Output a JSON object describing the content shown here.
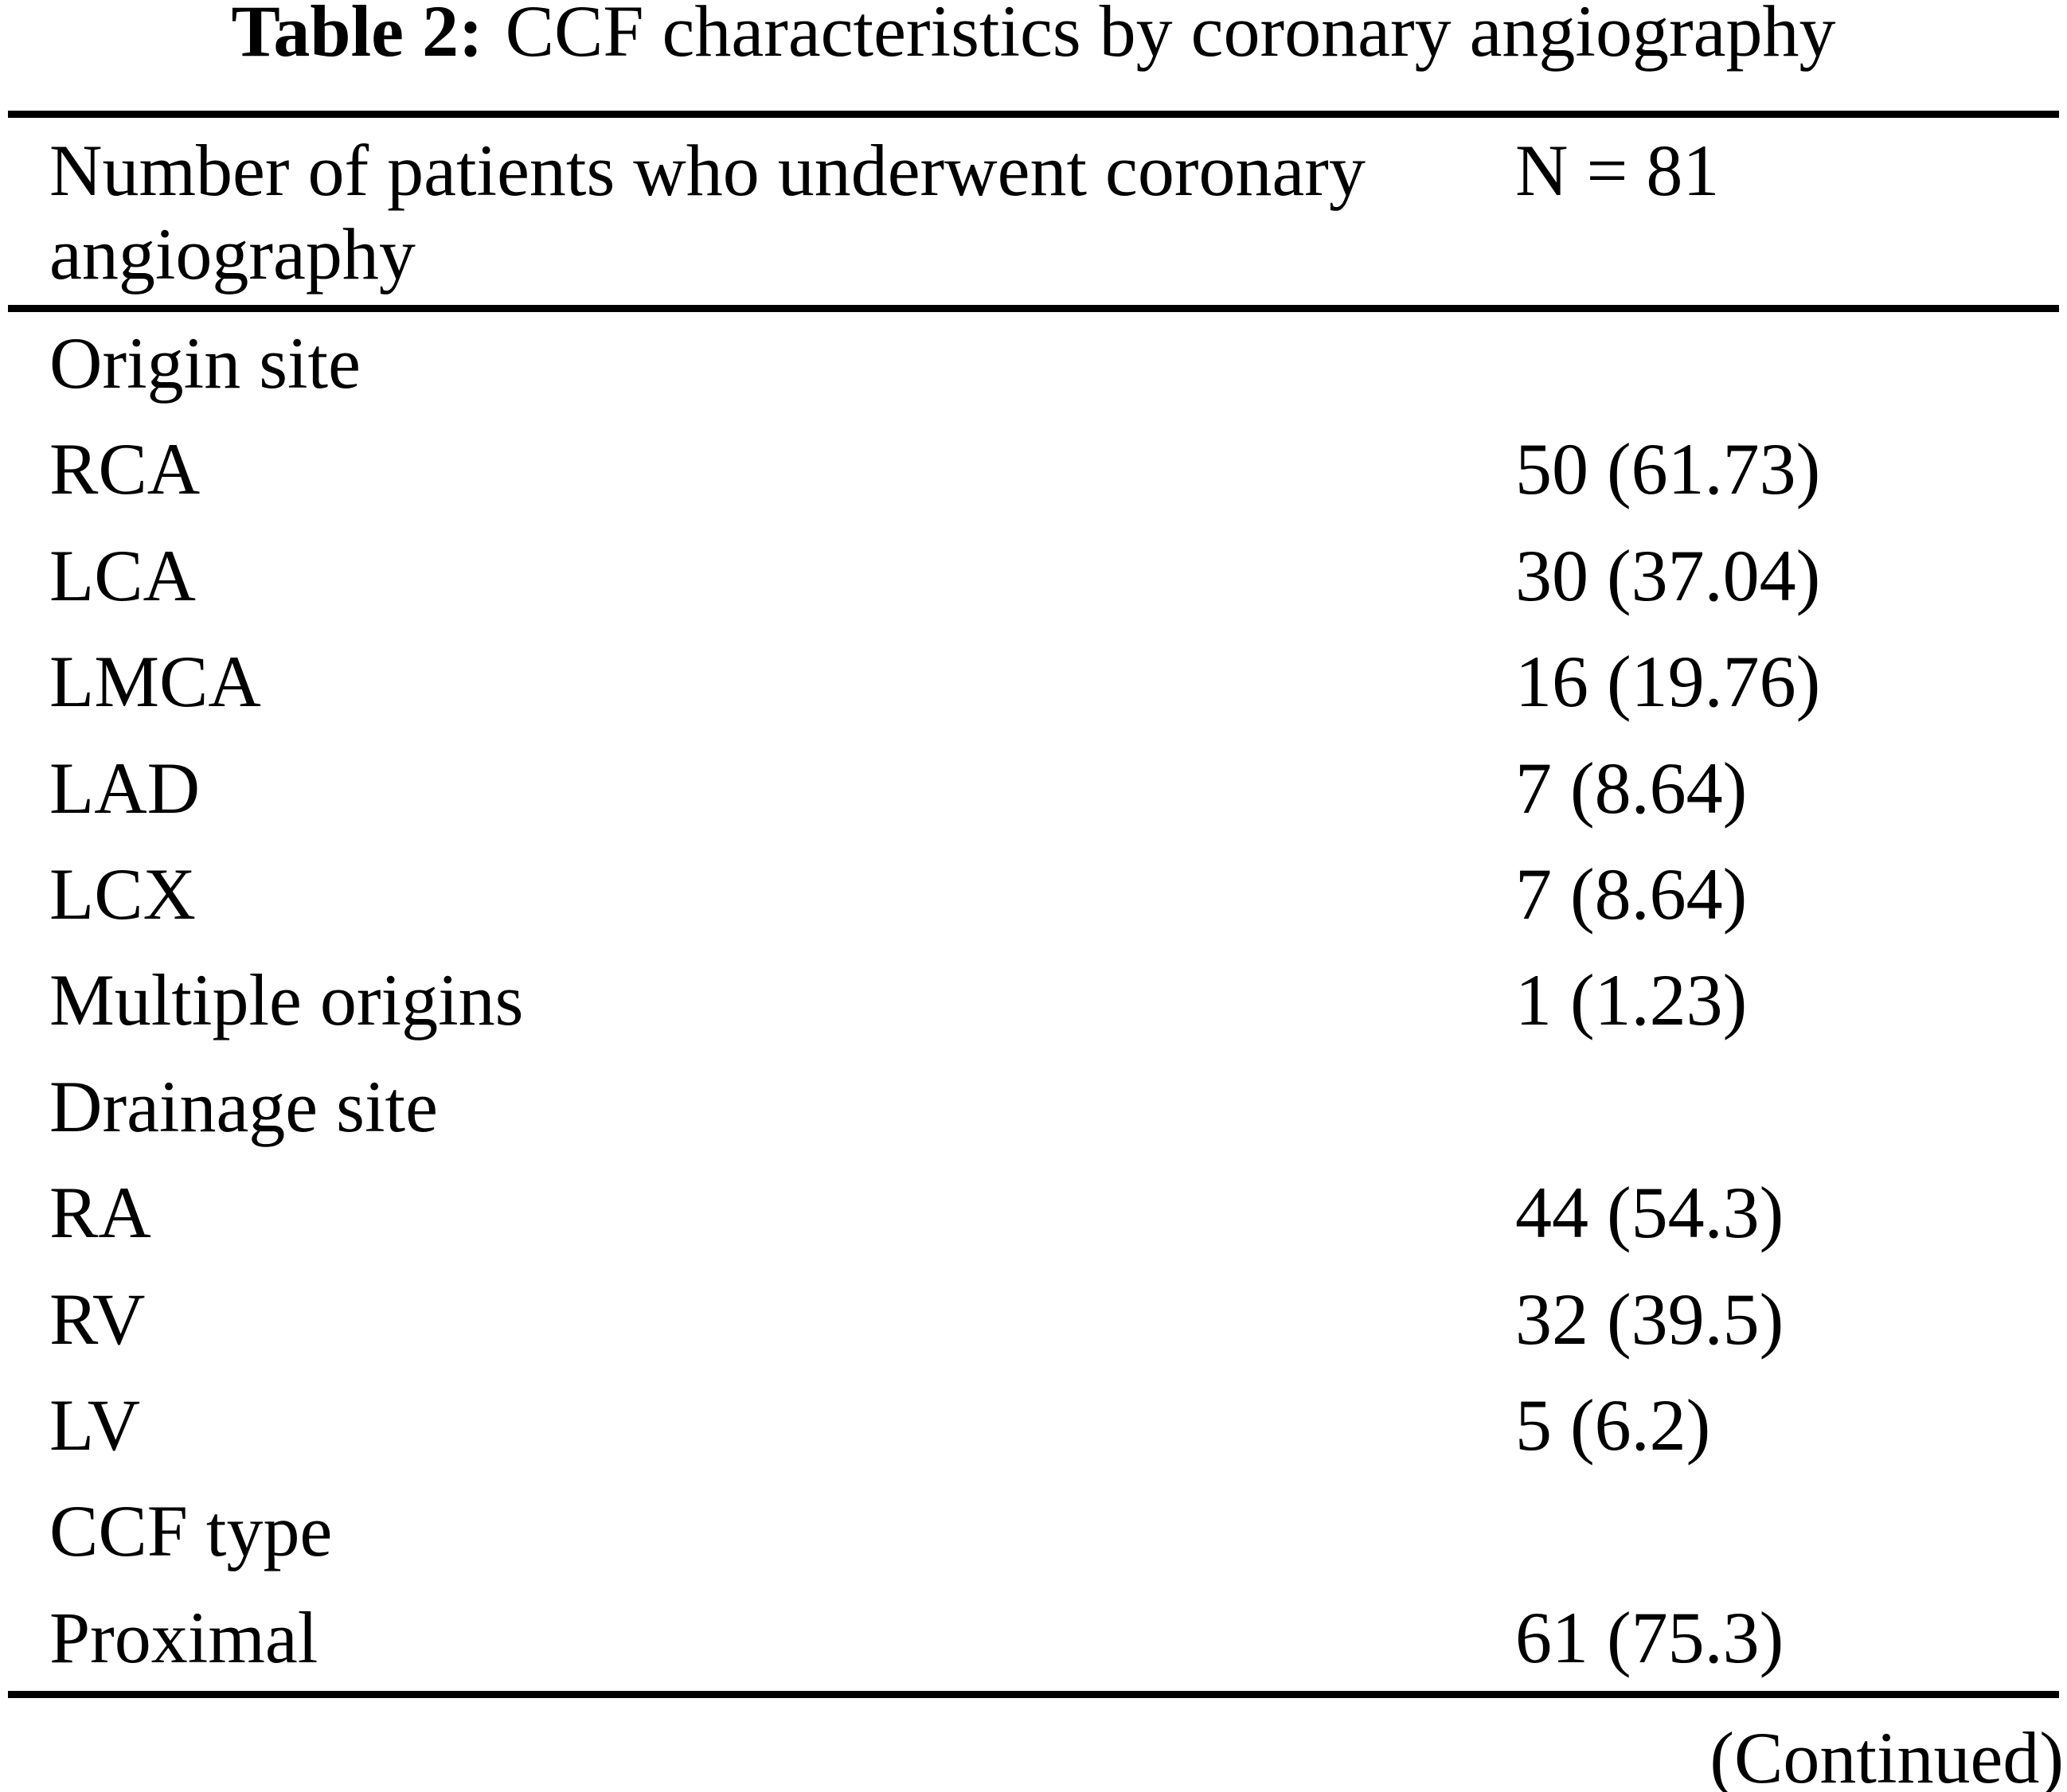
{
  "colors": {
    "text": "#000000",
    "background": "#ffffff",
    "rule": "#000000"
  },
  "table": {
    "title_label": "Table 2:",
    "title_text": "CCF characteristics by coronary angiography",
    "header": {
      "label": "Number of patients who underwent coronary angiography",
      "value": "N = 81"
    },
    "rows": [
      {
        "label": "Origin site",
        "value": ""
      },
      {
        "label": "RCA",
        "value": "50 (61.73)"
      },
      {
        "label": "LCA",
        "value": "30 (37.04)"
      },
      {
        "label": "LMCA",
        "value": "16 (19.76)"
      },
      {
        "label": "LAD",
        "value": "7 (8.64)"
      },
      {
        "label": "LCX",
        "value": "7 (8.64)"
      },
      {
        "label": "Multiple origins",
        "value": "1 (1.23)"
      },
      {
        "label": "Drainage site",
        "value": ""
      },
      {
        "label": "RA",
        "value": "44 (54.3)"
      },
      {
        "label": "RV",
        "value": "32 (39.5)"
      },
      {
        "label": "LV",
        "value": "5 (6.2)"
      },
      {
        "label": "CCF type",
        "value": ""
      },
      {
        "label": "Proximal",
        "value": "61 (75.3)"
      }
    ],
    "continued": "(Continued)"
  }
}
